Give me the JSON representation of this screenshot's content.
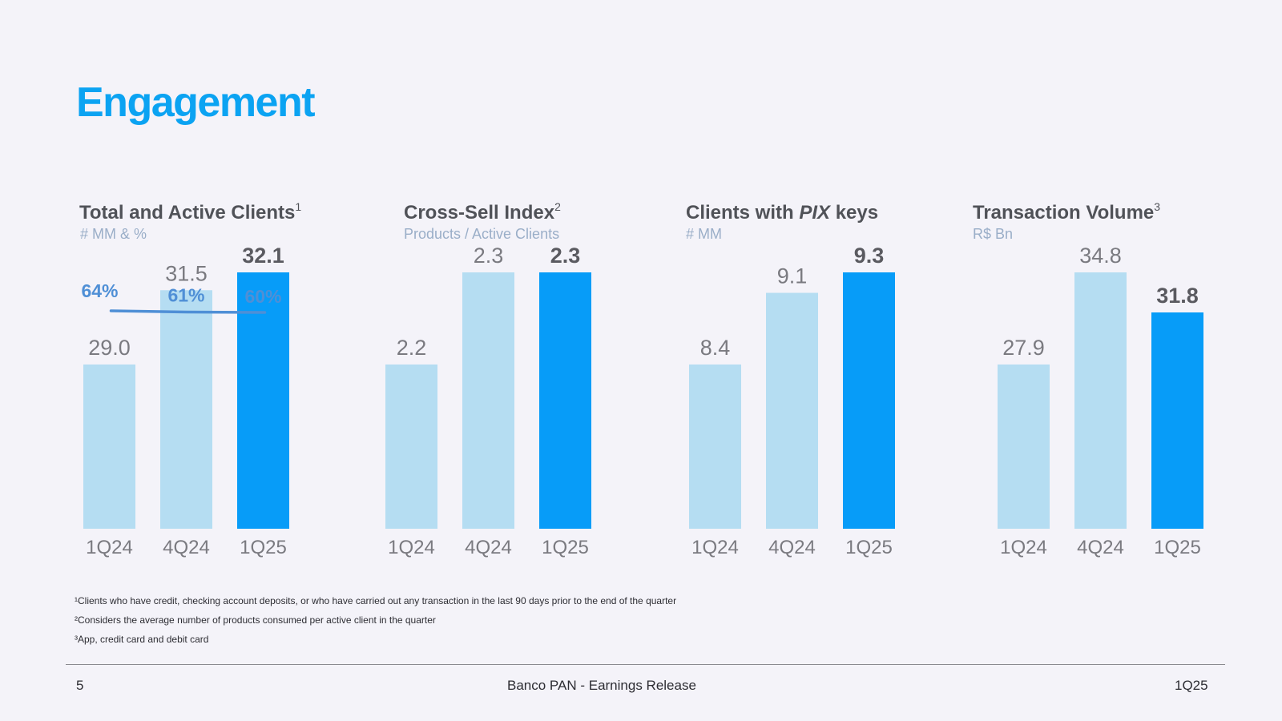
{
  "page": {
    "title": "Engagement",
    "page_number": "5",
    "footer_center": "Banco PAN - Earnings Release",
    "footer_right": "1Q25"
  },
  "colors": {
    "title": "#0ba3f2",
    "bar_light": "#b5ddf2",
    "bar_current": "#079cf8",
    "value_text": "#7a7a80",
    "value_current_text": "#5a5a60",
    "pct_line": "#4f8fd6",
    "axis_text": "#7a7a80"
  },
  "charts": [
    {
      "title": "Total and Active Clients",
      "sup": "1",
      "subtitle": "# MM & %"
    },
    {
      "title": "Cross-Sell Index",
      "sup": "2",
      "subtitle": "Products  / Active Clients"
    },
    {
      "title_pre": "Clients with ",
      "title_italic": "PIX",
      "title_post": " keys",
      "subtitle": "# MM"
    },
    {
      "title": "Transaction Volume",
      "sup": "3",
      "subtitle": "R$ Bn"
    }
  ],
  "chart_data": [
    {
      "type": "bar",
      "title": "Total and Active Clients",
      "unit": "# MM & %",
      "categories": [
        "1Q24",
        "4Q24",
        "1Q25"
      ],
      "values": [
        29.0,
        31.5,
        32.1
      ],
      "value_labels": [
        "29.0",
        "31.5",
        "32.1"
      ],
      "overlay_line": {
        "name": "Active clients %",
        "values": [
          64,
          61,
          60
        ],
        "labels": [
          "64%",
          "61%",
          "60%"
        ]
      }
    },
    {
      "type": "bar",
      "title": "Cross-Sell Index",
      "unit": "Products / Active Clients",
      "categories": [
        "1Q24",
        "4Q24",
        "1Q25"
      ],
      "values": [
        2.2,
        2.3,
        2.3
      ],
      "value_labels": [
        "2.2",
        "2.3",
        "2.3"
      ]
    },
    {
      "type": "bar",
      "title": "Clients with PIX keys",
      "unit": "# MM",
      "categories": [
        "1Q24",
        "4Q24",
        "1Q25"
      ],
      "values": [
        8.4,
        9.1,
        9.3
      ],
      "value_labels": [
        "8.4",
        "9.1",
        "9.3"
      ]
    },
    {
      "type": "bar",
      "title": "Transaction Volume",
      "unit": "R$ Bn",
      "categories": [
        "1Q24",
        "4Q24",
        "1Q25"
      ],
      "values": [
        27.9,
        34.8,
        31.8
      ],
      "value_labels": [
        "27.9",
        "34.8",
        "31.8"
      ]
    }
  ],
  "footnotes": [
    "¹Clients who have credit, checking account deposits, or who have carried out any transaction in the last 90 days prior to the end of the quarter",
    "²Considers the average number of products consumed per active client in the quarter",
    "³App, credit card and debit card"
  ]
}
